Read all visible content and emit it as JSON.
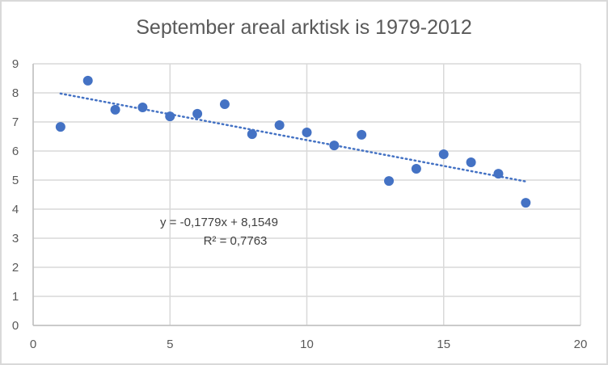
{
  "chart_data": {
    "type": "scatter",
    "title": "September areal arktisk is 1979-2012",
    "xlabel": "",
    "ylabel": "",
    "xlim": [
      0,
      20
    ],
    "ylim": [
      0,
      9
    ],
    "x_ticks": [
      0,
      5,
      10,
      15,
      20
    ],
    "y_ticks": [
      0,
      1,
      2,
      3,
      4,
      5,
      6,
      7,
      8,
      9
    ],
    "grid": true,
    "legend": null,
    "series": [
      {
        "name": "September areal",
        "color": "#4472c4",
        "x": [
          1,
          2,
          3,
          4,
          5,
          6,
          7,
          8,
          9,
          10,
          11,
          12,
          13,
          14,
          15,
          16,
          17,
          18
        ],
        "values": [
          6.83,
          8.42,
          7.42,
          7.5,
          7.19,
          7.28,
          7.61,
          6.58,
          6.89,
          6.64,
          6.19,
          6.56,
          4.97,
          5.39,
          5.89,
          5.61,
          5.22,
          4.22
        ]
      }
    ],
    "trendline": {
      "type": "linear",
      "style": "dotted",
      "color": "#4472c4",
      "slope": -0.1779,
      "intercept": 8.1549,
      "x_range": [
        1,
        18
      ],
      "equation_label": "y = -0,1779x + 8,1549",
      "r2_label": "R² = 0,7763"
    }
  }
}
